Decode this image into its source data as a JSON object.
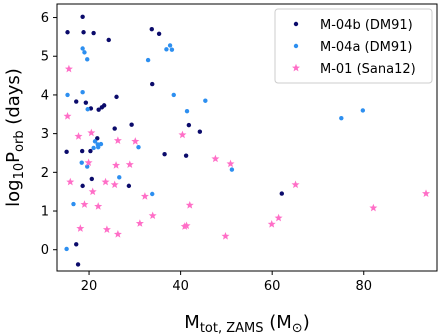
{
  "chart_data": {
    "type": "scatter",
    "xlabel": "M<sub>tot, ZAMS</sub> (M<sub>⊙</sub>)",
    "ylabel": "log<sub>10</sub>P<sub>orb</sub> (days)",
    "xlim": [
      13,
      96
    ],
    "ylim": [
      -0.55,
      6.35
    ],
    "x_ticks": [
      20,
      40,
      60,
      80
    ],
    "y_ticks": [
      0,
      1,
      2,
      3,
      4,
      5,
      6
    ],
    "grid": false,
    "legend_position": "top-right",
    "series": [
      {
        "name": "M-04b (DM91)",
        "color": "#0b0b6b",
        "marker": "circle",
        "points": [
          [
            15.3,
            5.62
          ],
          [
            18.6,
            6.02
          ],
          [
            18.8,
            5.62
          ],
          [
            21.0,
            5.6
          ],
          [
            24.3,
            5.42
          ],
          [
            33.7,
            5.7
          ],
          [
            35.3,
            5.58
          ],
          [
            17.2,
            3.83
          ],
          [
            19.3,
            3.8
          ],
          [
            20.4,
            3.65
          ],
          [
            22.1,
            3.62
          ],
          [
            22.8,
            3.68
          ],
          [
            23.3,
            3.73
          ],
          [
            26.0,
            3.95
          ],
          [
            33.8,
            4.28
          ],
          [
            15.1,
            2.53
          ],
          [
            18.5,
            2.55
          ],
          [
            20.3,
            2.55
          ],
          [
            21.8,
            2.88
          ],
          [
            25.6,
            3.13
          ],
          [
            29.3,
            3.23
          ],
          [
            41.8,
            3.22
          ],
          [
            44.2,
            3.05
          ],
          [
            36.5,
            2.47
          ],
          [
            41.2,
            2.43
          ],
          [
            18.6,
            1.65
          ],
          [
            20.6,
            1.83
          ],
          [
            28.7,
            1.65
          ],
          [
            17.2,
            0.14
          ],
          [
            17.6,
            -0.38
          ],
          [
            62.1,
            1.45
          ]
        ]
      },
      {
        "name": "M-04a (DM91)",
        "color": "#2d8ff0",
        "marker": "circle",
        "points": [
          [
            18.6,
            5.2
          ],
          [
            19.0,
            5.1
          ],
          [
            19.6,
            4.92
          ],
          [
            32.9,
            4.9
          ],
          [
            36.9,
            5.18
          ],
          [
            37.7,
            5.28
          ],
          [
            38.1,
            5.17
          ],
          [
            15.3,
            4.0
          ],
          [
            18.6,
            4.07
          ],
          [
            19.7,
            3.63
          ],
          [
            38.5,
            4.0
          ],
          [
            45.4,
            3.85
          ],
          [
            79.8,
            3.6
          ],
          [
            75.1,
            3.4
          ],
          [
            41.4,
            3.58
          ],
          [
            21.3,
            2.8
          ],
          [
            21.9,
            2.72
          ],
          [
            22.6,
            2.73
          ],
          [
            21.0,
            2.63
          ],
          [
            22.0,
            2.65
          ],
          [
            30.8,
            2.65
          ],
          [
            18.4,
            2.25
          ],
          [
            19.6,
            2.15
          ],
          [
            51.2,
            2.07
          ],
          [
            26.6,
            1.87
          ],
          [
            33.8,
            1.44
          ],
          [
            16.6,
            1.18
          ],
          [
            15.1,
            0.02
          ]
        ]
      },
      {
        "name": "M-01 (Sana12)",
        "color": "#ff6ec7",
        "marker": "star",
        "points": [
          [
            15.6,
            4.67
          ],
          [
            15.3,
            3.45
          ],
          [
            17.7,
            2.93
          ],
          [
            20.5,
            3.02
          ],
          [
            26.3,
            2.82
          ],
          [
            30.1,
            2.8
          ],
          [
            40.4,
            2.97
          ],
          [
            19.9,
            2.25
          ],
          [
            25.9,
            2.18
          ],
          [
            28.9,
            2.2
          ],
          [
            47.6,
            2.35
          ],
          [
            50.9,
            2.22
          ],
          [
            15.9,
            1.75
          ],
          [
            20.8,
            1.5
          ],
          [
            23.6,
            1.75
          ],
          [
            25.6,
            1.68
          ],
          [
            19.0,
            1.17
          ],
          [
            22.0,
            1.12
          ],
          [
            32.2,
            1.38
          ],
          [
            42.0,
            1.15
          ],
          [
            65.1,
            1.68
          ],
          [
            82.1,
            1.08
          ],
          [
            93.6,
            1.45
          ],
          [
            18.1,
            0.55
          ],
          [
            23.9,
            0.52
          ],
          [
            26.3,
            0.4
          ],
          [
            31.1,
            0.68
          ],
          [
            33.9,
            0.88
          ],
          [
            40.9,
            0.6
          ],
          [
            41.3,
            0.62
          ],
          [
            49.8,
            0.35
          ],
          [
            59.9,
            0.66
          ],
          [
            61.4,
            0.82
          ]
        ]
      }
    ]
  }
}
